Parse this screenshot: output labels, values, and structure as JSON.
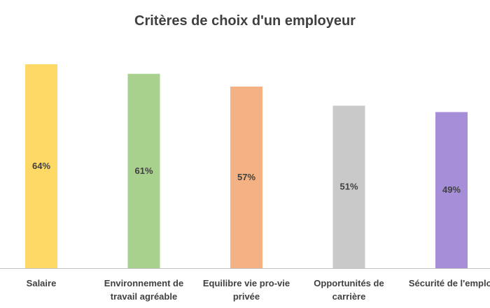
{
  "chart_data": {
    "type": "bar",
    "title": "Critères de choix d'un employeur",
    "xlabel": "",
    "ylabel": "",
    "categories": [
      "Salaire",
      "Environnement de travail agréable",
      "Equilibre vie pro-vie privée",
      "Opportunités de carrière",
      "Sécurité de l'emploi"
    ],
    "category_lines": [
      [
        "Salaire"
      ],
      [
        "Environnement de",
        "travail agréable"
      ],
      [
        "Equilibre vie pro-vie",
        "privée"
      ],
      [
        "Opportunités de",
        "carrière"
      ],
      [
        "Sécurité de l'emploi"
      ]
    ],
    "values": [
      64,
      61,
      57,
      51,
      49
    ],
    "data_labels": [
      "64%",
      "61%",
      "57%",
      "51%",
      "49%"
    ],
    "ylim": [
      0,
      64
    ],
    "grid": false,
    "legend": "none",
    "colors": [
      "#FFD966",
      "#A9D18E",
      "#F4B183",
      "#C9C9C9",
      "#A68FD8"
    ],
    "axis_color": "#BFBFBF",
    "text_color": "#404040"
  }
}
